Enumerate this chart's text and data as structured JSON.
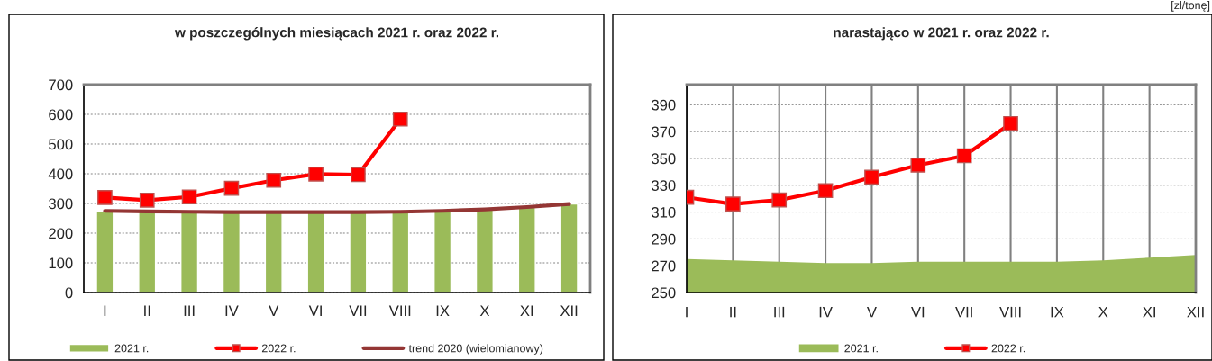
{
  "chart_data": [
    {
      "type": "bar",
      "title": "w poszczególnych miesiącach 2021 r. oraz 2022 r.",
      "categories": [
        "I",
        "II",
        "III",
        "IV",
        "V",
        "VI",
        "VII",
        "VIII",
        "IX",
        "X",
        "XI",
        "XII"
      ],
      "ylim": [
        0,
        700
      ],
      "yticks": [
        0,
        100,
        200,
        300,
        400,
        500,
        600,
        700
      ],
      "grid": "y",
      "legend": "bottom",
      "annotations": [
        "[zł/tonę]"
      ],
      "series": [
        {
          "name": "2021 r.",
          "type": "bar",
          "color": "#9bbb59",
          "values": [
            275,
            273,
            272,
            271,
            271,
            275,
            274,
            273,
            272,
            280,
            288,
            298
          ]
        },
        {
          "name": "2022 r.",
          "type": "line",
          "color": "#ff0000",
          "marker": "square",
          "values": [
            320,
            311,
            322,
            351,
            378,
            399,
            397,
            584,
            null,
            null,
            null,
            null
          ]
        },
        {
          "name": "trend 2020 (wielomianowy)",
          "type": "line",
          "color": "#943634",
          "values": [
            275,
            273,
            272,
            271,
            271,
            271,
            271,
            272,
            275,
            280,
            288,
            298
          ]
        }
      ]
    },
    {
      "type": "area",
      "title": "narastająco w 2021 r. oraz 2022 r.",
      "categories": [
        "I",
        "II",
        "III",
        "IV",
        "V",
        "VI",
        "VII",
        "VIII",
        "IX",
        "X",
        "XI",
        "XII"
      ],
      "ylim": [
        250,
        405
      ],
      "yticks": [
        250,
        270,
        290,
        310,
        330,
        350,
        370,
        390
      ],
      "grid": true,
      "legend": "bottom",
      "series": [
        {
          "name": "2021 r.",
          "type": "area",
          "color": "#9bbb59",
          "values": [
            275,
            274,
            273,
            272,
            272,
            273,
            273,
            273,
            273,
            274,
            276,
            278
          ]
        },
        {
          "name": "2022 r.",
          "type": "line",
          "color": "#ff0000",
          "marker": "square",
          "values": [
            321,
            316,
            319,
            326,
            336,
            345,
            352,
            376,
            null,
            null,
            null,
            null
          ]
        }
      ]
    }
  ]
}
